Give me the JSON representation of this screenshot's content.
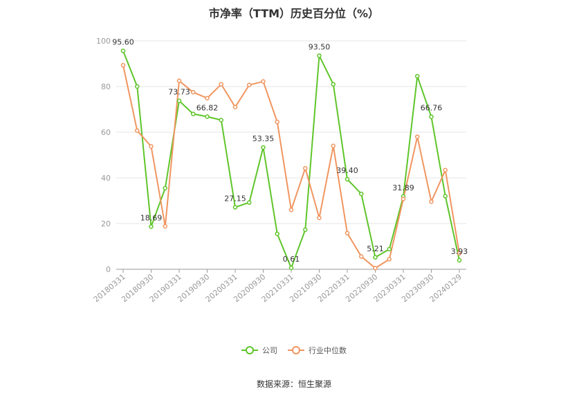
{
  "chart_data": {
    "type": "line",
    "title": "市净率（TTM）历史百分位（%）",
    "source": "数据来源：恒生聚源",
    "ylim": [
      0,
      100
    ],
    "yticks": [
      0,
      20,
      40,
      60,
      80,
      100
    ],
    "x": [
      "20180331",
      "20180630",
      "20180930",
      "20181231",
      "20190331",
      "20190630",
      "20190930",
      "20191231",
      "20200331",
      "20200630",
      "20200930",
      "20201231",
      "20210331",
      "20210630",
      "20210930",
      "20211231",
      "20220331",
      "20220630",
      "20220930",
      "20221231",
      "20230331",
      "20230630",
      "20230930",
      "20231231",
      "20240129"
    ],
    "xtick_labels": [
      "20180331",
      "20180930",
      "20190331",
      "20190930",
      "20200331",
      "20200930",
      "20210331",
      "20210930",
      "20220331",
      "20220930",
      "20230331",
      "20230930",
      "20240129"
    ],
    "xtick_indices": [
      0,
      2,
      4,
      6,
      8,
      10,
      12,
      14,
      16,
      18,
      20,
      22,
      24
    ],
    "grid": true,
    "legend": "bottom",
    "series": [
      {
        "name": "公司",
        "color": "#5ec529",
        "values": [
          95.6,
          80.0,
          18.69,
          35.5,
          73.73,
          68.0,
          66.82,
          65.3,
          27.15,
          29.2,
          53.35,
          15.5,
          0.61,
          17.3,
          93.5,
          81.0,
          39.4,
          33.0,
          5.21,
          8.8,
          31.89,
          84.5,
          66.76,
          32.0,
          3.93
        ],
        "labels": {
          "0": "95.60",
          "2": "18.69",
          "4": "73.73",
          "6": "66.82",
          "8": "27.15",
          "10": "53.35",
          "12": "0.61",
          "14": "93.50",
          "16": "39.40",
          "18": "5.21",
          "20": "31.89",
          "22": "66.76",
          "24": "3.93"
        }
      },
      {
        "name": "行业中位数",
        "color": "#f0955f",
        "values": [
          89.3,
          60.7,
          53.8,
          18.8,
          82.5,
          77.5,
          74.9,
          81.0,
          71.0,
          80.7,
          82.2,
          64.5,
          26.0,
          44.2,
          22.5,
          54.0,
          15.8,
          5.6,
          0.5,
          4.4,
          30.8,
          58.0,
          29.6,
          43.4,
          7.0
        ],
        "labels": {}
      }
    ]
  }
}
